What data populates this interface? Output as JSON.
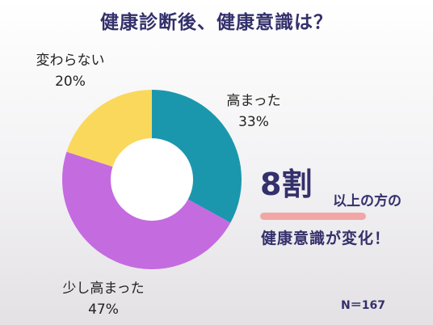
{
  "title": "健康診断後、健康意識は？",
  "colors": {
    "title": "#33306b",
    "underline": "#f2a6a6"
  },
  "chart_data": {
    "type": "pie",
    "variant": "donut",
    "title": "健康診断後、健康意識は？",
    "slices": [
      {
        "label": "高まった",
        "value": 33,
        "value_label": "33%",
        "color": "#1b97ad"
      },
      {
        "label": "少し高まった",
        "value": 47,
        "value_label": "47%",
        "color": "#c46be0"
      },
      {
        "label": "変わらない",
        "value": 20,
        "value_label": "20%",
        "color": "#fad85c"
      }
    ],
    "start_angle": "top",
    "direction": "clockwise"
  },
  "callout": {
    "big": "8割",
    "small": "以上の方の",
    "line2": "健康意識が変化！"
  },
  "sample_size": "N＝167"
}
